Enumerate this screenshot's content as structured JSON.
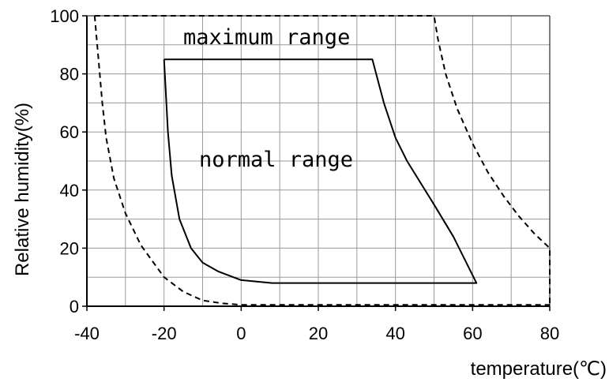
{
  "chart_data": {
    "type": "line",
    "xlabel": "temperature(℃)",
    "ylabel": "Relative humidity(%)",
    "xlim": [
      -40,
      80
    ],
    "ylim": [
      0,
      100
    ],
    "x_ticks": [
      "-40",
      "-20",
      "0",
      "20",
      "40",
      "60",
      "80"
    ],
    "y_ticks": [
      "0",
      "20",
      "40",
      "60",
      "80",
      "100"
    ],
    "x_grid_step": 10,
    "y_grid_step": 10,
    "grid": true,
    "annotations": {
      "maximum": "maximum range",
      "normal": "normal range"
    },
    "series": [
      {
        "style": "dashed",
        "points": [
          [
            -38,
            100
          ],
          [
            -37,
            85
          ],
          [
            -36,
            70
          ],
          [
            -35,
            58
          ],
          [
            -33,
            44
          ],
          [
            -30,
            32
          ],
          [
            -26,
            21
          ],
          [
            -20,
            10
          ],
          [
            -15,
            5
          ],
          [
            -10,
            2
          ],
          [
            -5,
            1
          ],
          [
            0,
            0.5
          ],
          [
            10,
            0.5
          ],
          [
            80,
            0.5
          ]
        ]
      },
      {
        "style": "dashed",
        "points": [
          [
            -38,
            100
          ],
          [
            50,
            100
          ],
          [
            51,
            92
          ],
          [
            53,
            80
          ],
          [
            56,
            68
          ],
          [
            60,
            56
          ],
          [
            64,
            46
          ],
          [
            68,
            38
          ],
          [
            72,
            31
          ],
          [
            76,
            25
          ],
          [
            80,
            20
          ],
          [
            80,
            0
          ]
        ]
      },
      {
        "style": "solid",
        "points": [
          [
            -20,
            85
          ],
          [
            34,
            85
          ],
          [
            37,
            70
          ],
          [
            40,
            58
          ],
          [
            43,
            50
          ],
          [
            50,
            35
          ],
          [
            55,
            24
          ],
          [
            61,
            8
          ],
          [
            8,
            8
          ],
          [
            0,
            9
          ],
          [
            -6,
            12
          ],
          [
            -10,
            15
          ],
          [
            -13,
            20
          ],
          [
            -16,
            30
          ],
          [
            -18,
            45
          ],
          [
            -19,
            60
          ],
          [
            -20,
            85
          ]
        ]
      }
    ]
  }
}
